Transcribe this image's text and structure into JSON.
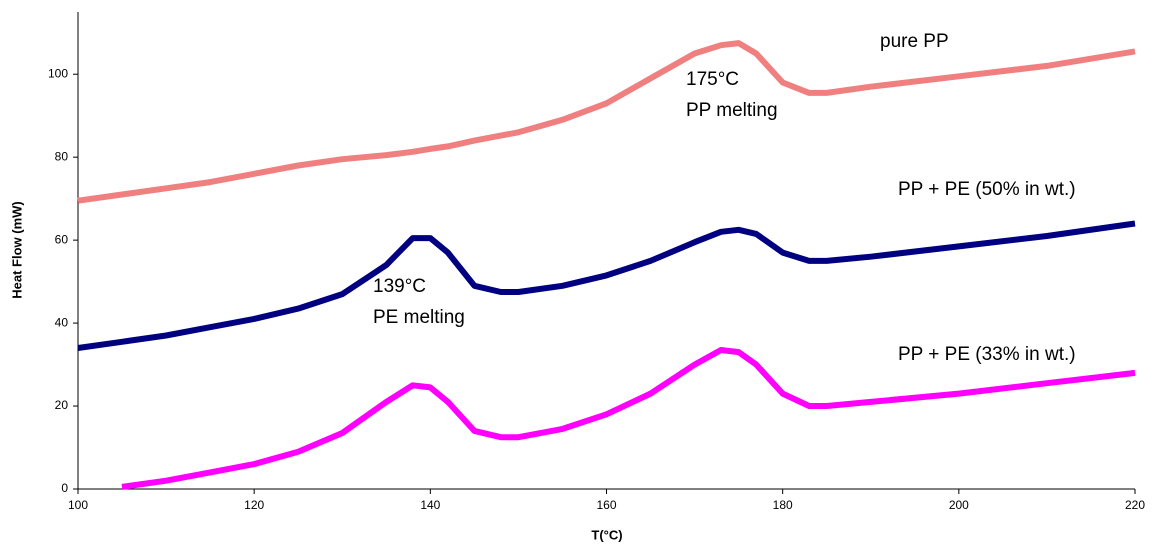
{
  "chart_data": {
    "type": "line",
    "xlabel": "T(°C)",
    "ylabel": "Heat Flow (mW)",
    "x": [
      100,
      105,
      110,
      115,
      120,
      125,
      130,
      135,
      138,
      140,
      142,
      145,
      148,
      150,
      155,
      160,
      165,
      170,
      173,
      175,
      177,
      180,
      183,
      185,
      190,
      200,
      210,
      220
    ],
    "series": [
      {
        "name": "pure PP",
        "color": "#f08080",
        "values": [
          69.5,
          71,
          72.5,
          74,
          76,
          78,
          79.5,
          80.5,
          81.3,
          82,
          82.6,
          84,
          85.2,
          86,
          89,
          93,
          99,
          105,
          107,
          107.5,
          105,
          98,
          95.5,
          95.5,
          97,
          99.5,
          102,
          105.5
        ]
      },
      {
        "name": "PP + PE (50% in wt.)",
        "color": "#000080",
        "values": [
          34,
          35.5,
          37,
          39,
          41,
          43.5,
          47,
          54,
          60.5,
          60.5,
          57,
          49,
          47.5,
          47.5,
          49,
          51.5,
          55,
          59.5,
          62,
          62.5,
          61.5,
          57,
          55,
          55,
          56,
          58.5,
          61,
          64
        ]
      },
      {
        "name": "PP + PE (33% in wt.)",
        "color": "#ff00ff",
        "values": [
          null,
          0.5,
          2,
          4,
          6,
          9,
          13.5,
          21,
          25,
          24.5,
          21,
          14,
          12.5,
          12.5,
          14.5,
          18,
          23,
          30,
          33.5,
          33,
          30,
          23,
          20,
          20,
          21,
          23,
          25.5,
          28
        ]
      }
    ],
    "annotations": [
      "175°C",
      "PP melting",
      "139°C",
      "PE melting"
    ],
    "xlim": [
      100,
      220
    ],
    "xticks": [
      100,
      120,
      140,
      160,
      180,
      200,
      220
    ],
    "ylim": [
      0,
      115
    ],
    "yticks": [
      0,
      20,
      40,
      60,
      80,
      100
    ],
    "grid": false
  }
}
